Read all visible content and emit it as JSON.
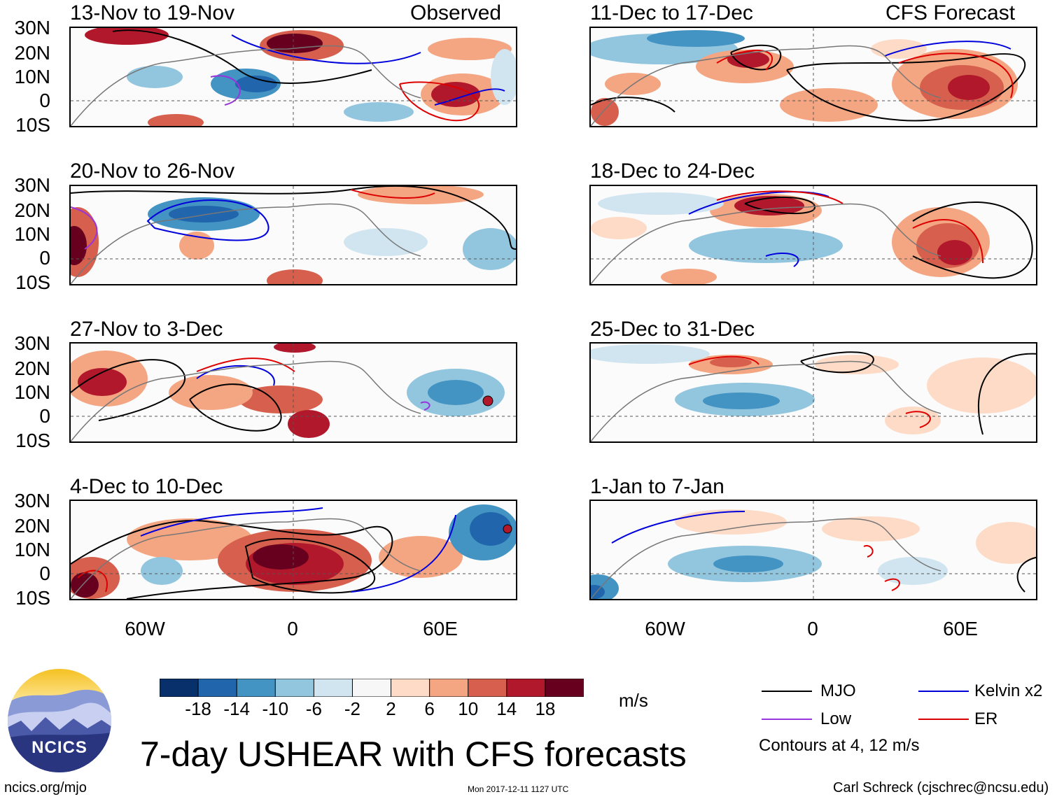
{
  "colors": {
    "mjo": "#000000",
    "kelvin": "#0000dd",
    "low": "#9933dd",
    "er": "#dd0000",
    "land": "#777777",
    "scale": [
      "#08306b",
      "#2166ac",
      "#4393c3",
      "#92c5de",
      "#d1e5f0",
      "#f7f7f7",
      "#fddbc7",
      "#f4a582",
      "#d6604d",
      "#b2182b",
      "#67001f"
    ]
  },
  "axes": {
    "lat_labels": [
      "30N",
      "20N",
      "10N",
      "0",
      "10S"
    ],
    "lon_labels": [
      "60W",
      "0",
      "60E"
    ]
  },
  "panels": {
    "left": [
      {
        "title": "13-Nov to 19-Nov",
        "tag": "Observed"
      },
      {
        "title": "20-Nov to 26-Nov",
        "tag": ""
      },
      {
        "title": "27-Nov to 3-Dec",
        "tag": ""
      },
      {
        "title": "4-Dec to 10-Dec",
        "tag": ""
      }
    ],
    "right": [
      {
        "title": "11-Dec to 17-Dec",
        "tag": "CFS Forecast"
      },
      {
        "title": "18-Dec to 24-Dec",
        "tag": ""
      },
      {
        "title": "25-Dec to 31-Dec",
        "tag": ""
      },
      {
        "title": "1-Jan to 7-Jan",
        "tag": ""
      }
    ]
  },
  "colorbar": {
    "ticks": [
      "-18",
      "-14",
      "-10",
      "-6",
      "-2",
      "2",
      "6",
      "10",
      "14",
      "18"
    ],
    "units": "m/s"
  },
  "legend": {
    "mjo": "MJO",
    "kelvin": "Kelvin x2",
    "low": "Low",
    "er": "ER",
    "note": "Contours at 4, 12 m/s"
  },
  "logo": {
    "text": "NCICS"
  },
  "footer": {
    "title": "7-day USHEAR with CFS forecasts",
    "url": "ncics.org/mjo",
    "timestamp": "Mon 2017-12-11 1127 UTC",
    "credit": "Carl Schreck (cjschrec@ncsu.edu)"
  }
}
